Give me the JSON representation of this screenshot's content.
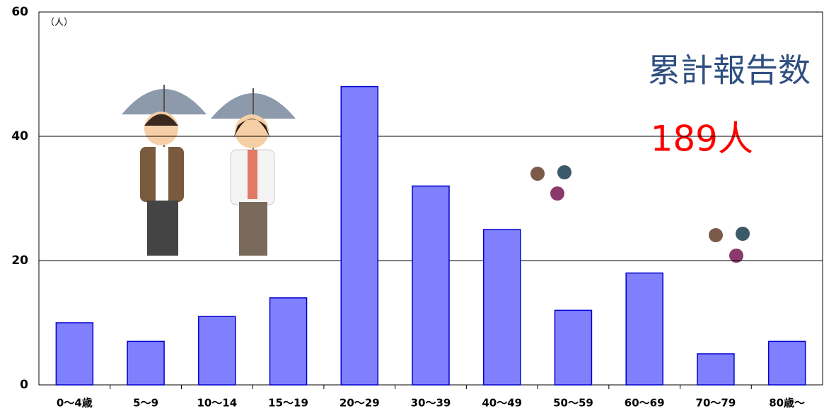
{
  "chart_data": {
    "type": "bar",
    "y_unit_label": "（人）",
    "annotations": [
      "累計報告数",
      "189人"
    ],
    "categories": [
      "0～4歳",
      "5～9",
      "10～14",
      "15～19",
      "20～29",
      "30～39",
      "40～49",
      "50～59",
      "60～69",
      "70～79",
      "80歳～"
    ],
    "values": [
      10,
      7,
      11,
      14,
      48,
      32,
      25,
      12,
      18,
      5,
      7
    ],
    "color": "#8080ff",
    "ylim": [
      0,
      60
    ],
    "yticks": [
      0,
      20,
      40,
      60
    ],
    "grid": true
  }
}
